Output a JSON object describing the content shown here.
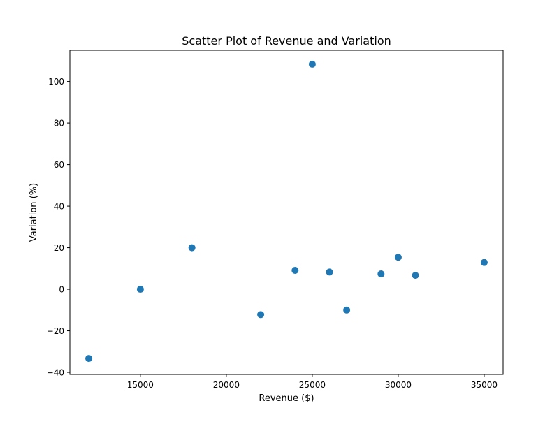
{
  "chart_data": {
    "type": "scatter",
    "title": "Scatter Plot of Revenue and Variation",
    "xlabel": "Revenue ($)",
    "ylabel": "Variation (%)",
    "xlim": [
      10900,
      36100
    ],
    "ylim": [
      -41,
      115
    ],
    "xticks": [
      15000,
      20000,
      25000,
      30000,
      35000
    ],
    "yticks": [
      -40,
      -20,
      0,
      20,
      40,
      60,
      80,
      100
    ],
    "xtick_labels": [
      "15000",
      "20000",
      "25000",
      "30000",
      "35000"
    ],
    "ytick_labels": [
      "−40",
      "−20",
      "0",
      "20",
      "40",
      "60",
      "80",
      "100"
    ],
    "grid": false,
    "legend": "none",
    "marker_color": "#1f77b4",
    "points": [
      {
        "x": 12000,
        "y": -33.3
      },
      {
        "x": 15000,
        "y": 0
      },
      {
        "x": 18000,
        "y": 20
      },
      {
        "x": 22000,
        "y": -12.2
      },
      {
        "x": 24000,
        "y": 9.1
      },
      {
        "x": 25000,
        "y": 108.3
      },
      {
        "x": 26000,
        "y": 8.3
      },
      {
        "x": 27000,
        "y": -10
      },
      {
        "x": 29000,
        "y": 7.4
      },
      {
        "x": 30000,
        "y": 15.4
      },
      {
        "x": 31000,
        "y": 6.7
      },
      {
        "x": 35000,
        "y": 12.9
      }
    ]
  }
}
